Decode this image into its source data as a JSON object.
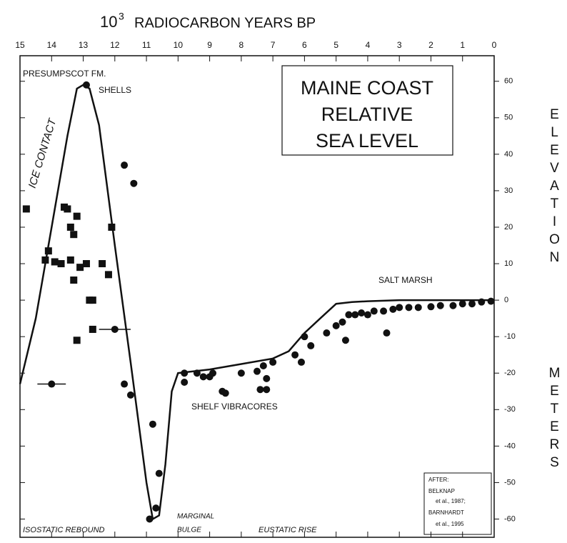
{
  "chart_data": {
    "type": "scatter",
    "x_label_base": "10",
    "x_label_exponent": "3",
    "x_label_text": "RADIOCARBON YEARS BP",
    "y_label_1": "ELEVATION",
    "y_label_2": "METERS",
    "box_title": [
      "MAINE COAST",
      "RELATIVE",
      "SEA LEVEL"
    ],
    "annotations": [
      "PRESUMPSCOT FM.",
      "SHELLS",
      "ICE CONTACT",
      "SALT MARSH",
      "SHELF VIBRACORES",
      "ISOSTATIC REBOUND",
      "MARGINAL",
      "BULGE",
      "EUSTATIC RISE"
    ],
    "credit": [
      "AFTER:",
      "BELKNAP",
      "et al., 1987;",
      "BARNHARDT",
      "et al., 1995"
    ],
    "xlim": [
      15,
      0
    ],
    "ylim": [
      -65,
      67
    ],
    "xticks": [
      15,
      14,
      13,
      12,
      11,
      10,
      9,
      8,
      7,
      6,
      5,
      4,
      3,
      2,
      1,
      0
    ],
    "yticks": [
      60,
      50,
      40,
      30,
      20,
      10,
      0,
      -10,
      -20,
      -30,
      -40,
      -50,
      -60
    ],
    "color": "#111111",
    "curve": {
      "x": [
        15,
        14.5,
        14,
        13.5,
        13.2,
        13,
        12.8,
        12.5,
        12,
        11.5,
        11,
        10.8,
        10.6,
        10.4,
        10.2,
        10,
        9,
        8,
        7,
        6.5,
        6,
        5.5,
        5,
        4.5,
        4,
        3,
        2,
        1,
        0
      ],
      "y": [
        -23,
        -5,
        20,
        45,
        58,
        59,
        58,
        48,
        15,
        -17,
        -50,
        -60,
        -59,
        -45,
        -25,
        -20,
        -19,
        -17.5,
        -16,
        -14,
        -9,
        -5,
        -1,
        -0.5,
        -0.3,
        0,
        0,
        0,
        0
      ]
    },
    "squares": {
      "x": [
        14.8,
        14.1,
        14.2,
        13.9,
        13.7,
        13.6,
        13.5,
        13.4,
        13.3,
        13.2,
        13.4,
        13.3,
        13.1,
        12.9,
        12.8,
        12.7,
        12.7,
        13.2,
        12.4,
        12.2,
        12.1
      ],
      "y": [
        25,
        13.5,
        11,
        10.5,
        10,
        25.5,
        25,
        20,
        18,
        23,
        11,
        5.5,
        9,
        10,
        0,
        0,
        -8,
        -11,
        10,
        7,
        20
      ]
    },
    "circles": {
      "x": [
        12.9,
        11.7,
        11.4,
        14.0,
        12.0,
        11.7,
        11.5,
        10.8,
        10.9,
        10.7,
        10.6,
        9.8,
        9.8,
        9.4,
        9.2,
        9.0,
        8.9,
        8.6,
        8.5,
        8.0,
        7.5,
        7.4,
        7.2,
        7.2,
        7.3,
        7.0,
        6.3,
        6.1,
        6.0,
        5.8,
        5.3,
        5.0,
        4.8,
        4.7,
        4.6,
        4.4,
        4.2,
        4.0,
        3.8,
        3.5,
        3.4,
        3.2,
        3,
        2.7,
        2.4,
        2,
        1.7,
        1.3,
        1,
        0.7,
        0.4,
        0.1
      ],
      "y": [
        59,
        37,
        32,
        -23,
        -8,
        -23,
        -26,
        -34,
        -60,
        -57,
        -47.5,
        -20,
        -22.5,
        -20,
        -21,
        -21,
        -20,
        -25,
        -25.5,
        -20,
        -19.5,
        -24.5,
        -24.5,
        -21.5,
        -18,
        -17,
        -15,
        -17,
        -10,
        -12.5,
        -9,
        -7,
        -6,
        -11,
        -4,
        -4,
        -3.5,
        -4,
        -3,
        -3,
        -9,
        -2.5,
        -2,
        -2,
        -2,
        -1.8,
        -1.5,
        -1.5,
        -1,
        -1,
        -0.5,
        -0.3
      ],
      "xerr": [
        null,
        null,
        null,
        0.45,
        0.5,
        null,
        null,
        null,
        null,
        null,
        null,
        null,
        null,
        null,
        null,
        null,
        null,
        null,
        null,
        null,
        null,
        null,
        null,
        null,
        null,
        null,
        null,
        null,
        null,
        null,
        null,
        null,
        null,
        null,
        null,
        null,
        null,
        null,
        null,
        null,
        null,
        null,
        null,
        null,
        null,
        null,
        null,
        null,
        null,
        null,
        null,
        null
      ]
    }
  }
}
